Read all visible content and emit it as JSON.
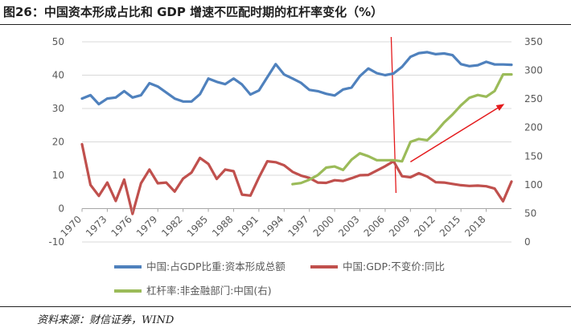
{
  "title": "图26：中国资本形成占比和 GDP 增速不匹配时期的杠杆率变化（%）",
  "source": "资料来源：财信证券，WIND",
  "colors": {
    "series1": "#4f81bd",
    "series2": "#c0504d",
    "series3": "#9bbb59",
    "annotation": "#e41a1c",
    "grid": "#d9d9d9"
  },
  "chart_data": {
    "type": "line",
    "x_start": 1970,
    "x_end": 2021,
    "x_ticks": [
      1970,
      1973,
      1976,
      1979,
      1982,
      1985,
      1988,
      1991,
      1994,
      1997,
      2000,
      2003,
      2006,
      2009,
      2012,
      2015,
      2018
    ],
    "y_left": {
      "lim": [
        -10,
        50
      ],
      "ticks": [
        -10,
        0,
        10,
        20,
        30,
        40,
        50
      ]
    },
    "y_right": {
      "lim": [
        0,
        350
      ],
      "ticks": [
        0,
        50,
        100,
        150,
        200,
        250,
        300,
        350
      ]
    },
    "grid": true,
    "legend_position": "bottom",
    "series": [
      {
        "name": "中国:占GDP比重:资本形成总额",
        "axis": "left",
        "x": [
          1970,
          1971,
          1972,
          1973,
          1974,
          1975,
          1976,
          1977,
          1978,
          1979,
          1980,
          1981,
          1982,
          1983,
          1984,
          1985,
          1986,
          1987,
          1988,
          1989,
          1990,
          1991,
          1992,
          1993,
          1994,
          1995,
          1996,
          1997,
          1998,
          1999,
          2000,
          2001,
          2002,
          2003,
          2004,
          2005,
          2006,
          2007,
          2008,
          2009,
          2010,
          2011,
          2012,
          2013,
          2014,
          2015,
          2016,
          2017,
          2018,
          2019,
          2020,
          2021
        ],
        "values": [
          33,
          34,
          31.3,
          33,
          33.3,
          35.2,
          33.3,
          34,
          37.6,
          36.6,
          34.8,
          33,
          32.1,
          32.1,
          34.3,
          39,
          38,
          37.3,
          39,
          37.2,
          34.2,
          35.4,
          39.4,
          43.3,
          40.2,
          39,
          37.7,
          35.6,
          35.2,
          34.4,
          33.9,
          35.7,
          36.3,
          39.7,
          42,
          40.6,
          40,
          40.5,
          42.5,
          45.5,
          46.6,
          46.9,
          46.3,
          46.5,
          46,
          43.3,
          42.7,
          43,
          44,
          43.2,
          43.2,
          43.1
        ]
      },
      {
        "name": "中国:GDP:不变价:同比",
        "axis": "left",
        "x": [
          1970,
          1971,
          1972,
          1973,
          1974,
          1975,
          1976,
          1977,
          1978,
          1979,
          1980,
          1981,
          1982,
          1983,
          1984,
          1985,
          1986,
          1987,
          1988,
          1989,
          1990,
          1991,
          1992,
          1993,
          1994,
          1995,
          1996,
          1997,
          1998,
          1999,
          2000,
          2001,
          2002,
          2003,
          2004,
          2005,
          2006,
          2007,
          2008,
          2009,
          2010,
          2011,
          2012,
          2013,
          2014,
          2015,
          2016,
          2017,
          2018,
          2019,
          2020,
          2021
        ],
        "values": [
          19.3,
          7.1,
          3.8,
          7.8,
          2.3,
          8.7,
          -1.6,
          7.6,
          11.7,
          7.6,
          7.8,
          5.1,
          9,
          10.8,
          15.2,
          13.4,
          8.9,
          11.7,
          11.2,
          4.2,
          3.9,
          9.3,
          14.2,
          13.9,
          13,
          11,
          9.9,
          9.2,
          7.8,
          7.7,
          8.5,
          8.3,
          9.1,
          10,
          10.1,
          11.4,
          12.7,
          14.2,
          9.7,
          9.4,
          10.6,
          9.6,
          7.9,
          7.8,
          7.4,
          7,
          6.8,
          6.9,
          6.7,
          6,
          2.2,
          8.1
        ]
      },
      {
        "name": "杠杆率:非金融部门:中国(右)",
        "axis": "right",
        "x": [
          1995,
          1996,
          1997,
          1998,
          1999,
          2000,
          2001,
          2002,
          2003,
          2004,
          2005,
          2006,
          2007,
          2008,
          2009,
          2010,
          2011,
          2012,
          2013,
          2014,
          2015,
          2016,
          2017,
          2018,
          2019,
          2020,
          2021
        ],
        "values": [
          101,
          103,
          109,
          117,
          130,
          132,
          126,
          144,
          155,
          150,
          143,
          143,
          143,
          141,
          175,
          180,
          178,
          192,
          209,
          223,
          239,
          252,
          257,
          254,
          264,
          293,
          293
        ]
      }
    ],
    "annotations": [
      {
        "type": "vline",
        "x": 2007
      },
      {
        "type": "arrow",
        "from": [
          2009,
          140
        ],
        "to": [
          2020,
          240
        ],
        "axis": "right"
      }
    ]
  }
}
